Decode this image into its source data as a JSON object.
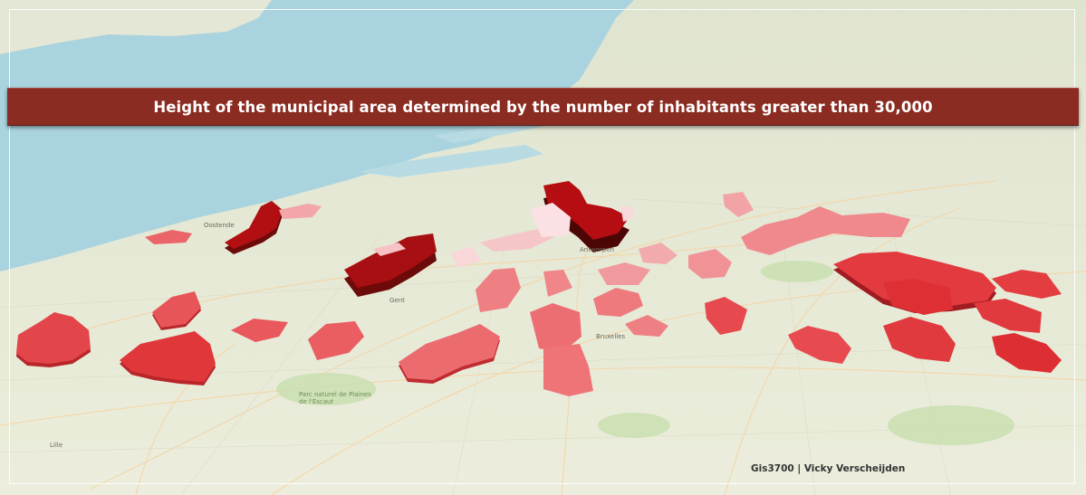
{
  "title": "Height of the municipal area determined by the number of inhabitants greater than 30,000",
  "credit": "Gis3700 | Vicky Verscheijden",
  "colors": {
    "sea": "#a9d3de",
    "land": "#e9ead9",
    "title_bar": "#8b2c22",
    "extrusion_dark": "#a80f0f",
    "extrusion_mid": "#e2484a",
    "extrusion_light": "#f7c9cc"
  },
  "map_labels": [
    "Lille",
    "Bruxelles",
    "Parc naturel de Plaines de l'Escaut",
    "Gent",
    "Antwerpen",
    "Oostende"
  ]
}
